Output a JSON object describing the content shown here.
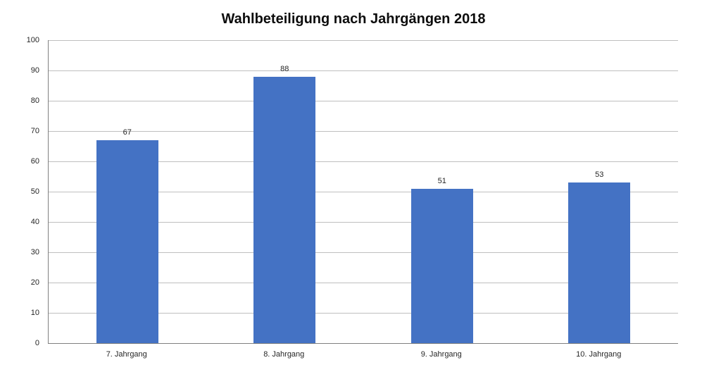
{
  "chart_data": {
    "type": "bar",
    "title": "Wahlbeteiligung nach Jahrgängen 2018",
    "categories": [
      "7. Jahrgang",
      "8. Jahrgang",
      "9. Jahrgang",
      "10. Jahrgang"
    ],
    "values": [
      67,
      88,
      51,
      53
    ],
    "data_labels": [
      "67",
      "88",
      "51",
      "53"
    ],
    "xlabel": "",
    "ylabel": "",
    "ylim": [
      0,
      100
    ],
    "ytick_step": 10,
    "ytick_labels": [
      "0",
      "10",
      "20",
      "30",
      "40",
      "50",
      "60",
      "70",
      "80",
      "90",
      "100"
    ],
    "grid": "horizontal-only",
    "legend": "none",
    "bar_color": "#4472C4",
    "gridline_color": "#BFBFBF",
    "axis_line_color": "#808080",
    "label_color": "#262626",
    "title_color": "#0D0D0D"
  }
}
